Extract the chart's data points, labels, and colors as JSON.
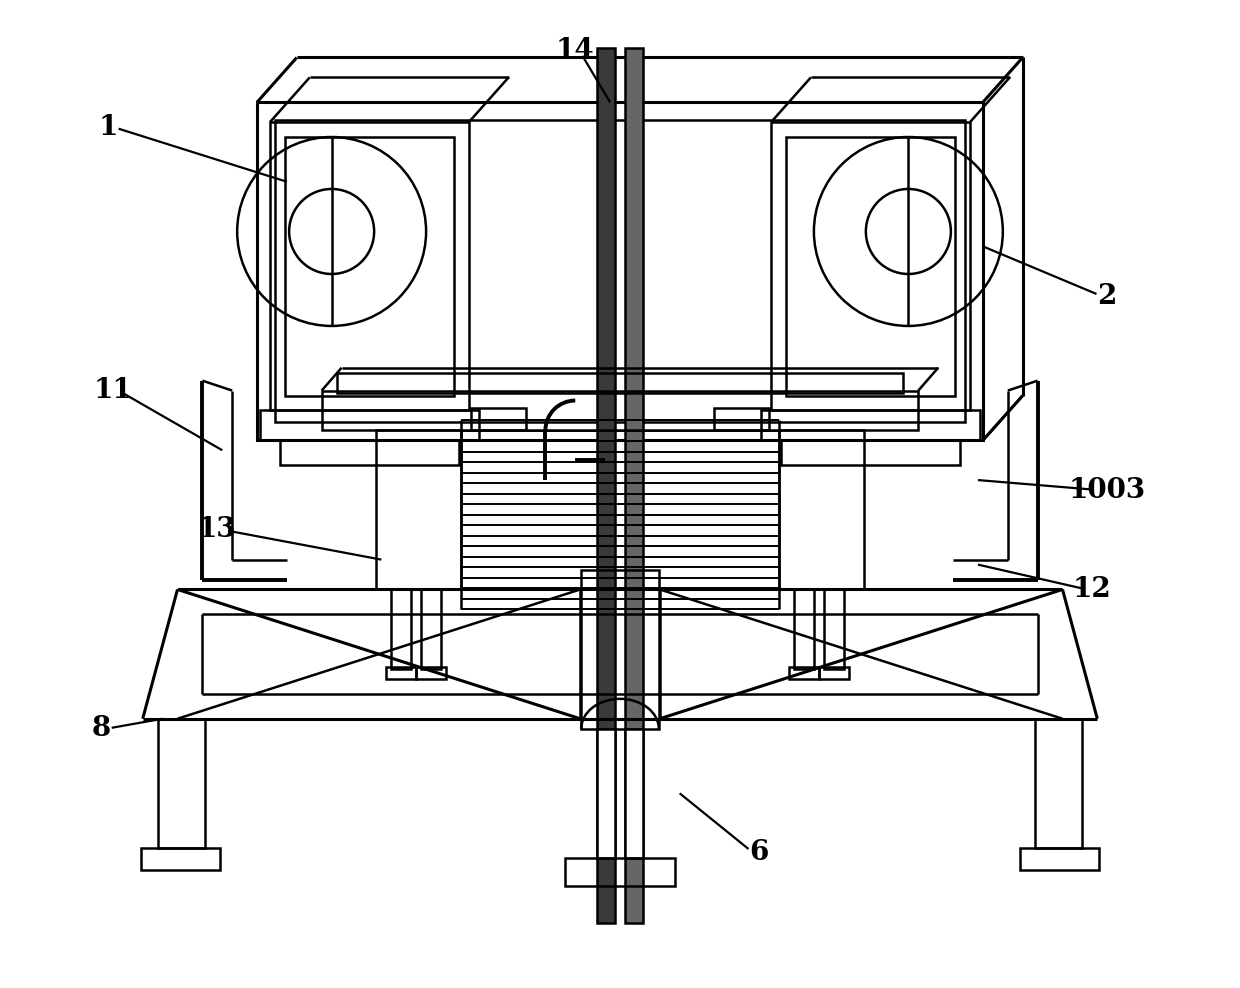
{
  "bg_color": "#ffffff",
  "line_color": "#000000",
  "fig_width": 12.4,
  "fig_height": 9.88,
  "dpi": 100,
  "label_fontsize": 20,
  "label_leader_lw": 1.6,
  "main_lw": 1.8,
  "thick_lw": 2.2
}
